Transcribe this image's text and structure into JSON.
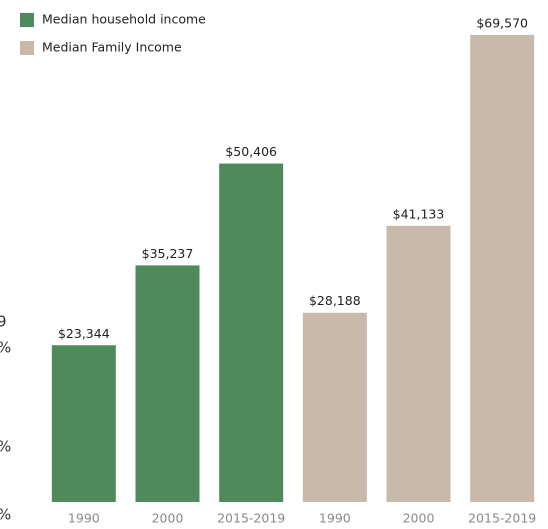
{
  "chart_data": {
    "type": "bar",
    "categories": [
      "1990",
      "2000",
      "2015-2019",
      "1990",
      "2000",
      "2015-2019"
    ],
    "series": [
      {
        "name": "Median household income",
        "color": "#4f8a5a",
        "values": [
          23344,
          35237,
          50406,
          null,
          null,
          null
        ],
        "value_labels": [
          "$23,344",
          "$35,237",
          "$50,406",
          null,
          null,
          null
        ]
      },
      {
        "name": "Median Family Income",
        "color": "#c9b9aa",
        "values": [
          null,
          null,
          null,
          28188,
          41133,
          69570
        ],
        "value_labels": [
          null,
          null,
          null,
          "$28,188",
          "$41,133",
          "$69,570"
        ]
      }
    ],
    "ylim": [
      0,
      70000
    ],
    "edge_fragments": [
      "9",
      "%",
      "%",
      "%"
    ]
  }
}
